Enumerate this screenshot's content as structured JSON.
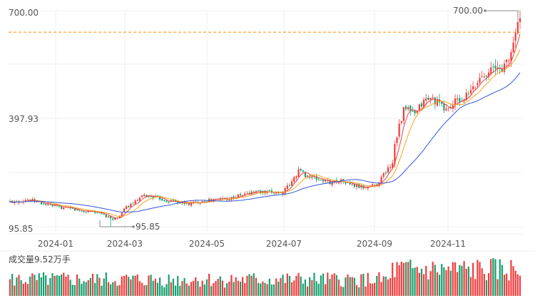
{
  "chart_data": {
    "type": "candlestick",
    "title": "",
    "grid": true,
    "colors": {
      "up": "#f03c3c",
      "down": "#15a06e",
      "ma_short": "#ee4444",
      "ma_mid": "#f5a623",
      "ma_long": "#3355dd",
      "ref_line": "#ff8a00",
      "grid": "#efefef",
      "axis_text": "#555555",
      "annotation": "#888888"
    },
    "y_axis": {
      "labels": [
        "700.00",
        "397.93",
        "95.85"
      ],
      "range": [
        95.85,
        700.0
      ]
    },
    "x_axis": {
      "labels": [
        "2024-01",
        "2024-03",
        "2024-05",
        "2024-07",
        "2024-09",
        "2024-11"
      ]
    },
    "reference_line": {
      "value": 640,
      "style": "dashed"
    },
    "annotations": {
      "high": {
        "label": "700.00",
        "value": 700.0
      },
      "low": {
        "label": "95.85",
        "value": 95.85
      }
    },
    "price_path": [
      [
        0,
        165
      ],
      [
        8,
        172
      ],
      [
        15,
        160
      ],
      [
        22,
        150
      ],
      [
        28,
        145
      ],
      [
        33,
        138
      ],
      [
        37,
        140
      ],
      [
        42,
        128
      ],
      [
        45,
        118
      ],
      [
        48,
        120
      ],
      [
        52,
        150
      ],
      [
        56,
        165
      ],
      [
        60,
        183
      ],
      [
        64,
        180
      ],
      [
        67,
        175
      ],
      [
        70,
        168
      ],
      [
        73,
        168
      ],
      [
        76,
        163
      ],
      [
        80,
        160
      ],
      [
        84,
        165
      ],
      [
        88,
        170
      ],
      [
        92,
        172
      ],
      [
        95,
        175
      ],
      [
        98,
        175
      ],
      [
        102,
        182
      ],
      [
        106,
        188
      ],
      [
        110,
        195
      ],
      [
        114,
        190
      ],
      [
        118,
        192
      ],
      [
        122,
        192
      ],
      [
        126,
        220
      ],
      [
        129,
        255
      ],
      [
        131,
        245
      ],
      [
        134,
        235
      ],
      [
        137,
        230
      ],
      [
        140,
        225
      ],
      [
        143,
        220
      ],
      [
        147,
        225
      ],
      [
        150,
        220
      ],
      [
        154,
        210
      ],
      [
        158,
        205
      ],
      [
        161,
        210
      ],
      [
        164,
        215
      ],
      [
        168,
        250
      ],
      [
        171,
        275
      ],
      [
        172,
        330
      ],
      [
        174,
        380
      ],
      [
        176,
        420
      ],
      [
        178,
        425
      ],
      [
        181,
        405
      ],
      [
        184,
        440
      ],
      [
        187,
        455
      ],
      [
        190,
        450
      ],
      [
        193,
        430
      ],
      [
        196,
        425
      ],
      [
        199,
        445
      ],
      [
        202,
        450
      ],
      [
        205,
        465
      ],
      [
        208,
        490
      ],
      [
        211,
        520
      ],
      [
        214,
        535
      ],
      [
        217,
        535
      ],
      [
        220,
        540
      ],
      [
        223,
        560
      ],
      [
        226,
        640
      ],
      [
        228,
        690
      ]
    ],
    "ma_periods": [
      5,
      10,
      30
    ],
    "volume": {
      "label": "成交量9.52万手",
      "unit": "万手"
    }
  }
}
